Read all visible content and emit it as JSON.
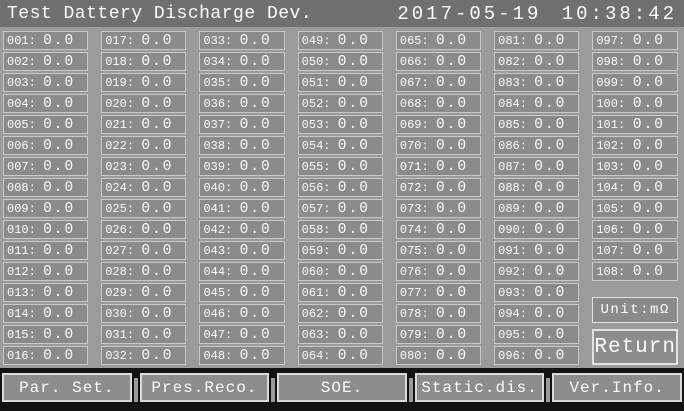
{
  "title_bar": {
    "title": "Test Dattery Discharge Dev.",
    "datetime": "2017-05-19 10:38:42"
  },
  "grid": {
    "unit_label": "Unit:mΩ",
    "return_label": "Return",
    "cells": [
      {
        "id": "001",
        "value": "0.0"
      },
      {
        "id": "002",
        "value": "0.0"
      },
      {
        "id": "003",
        "value": "0.0"
      },
      {
        "id": "004",
        "value": "0.0"
      },
      {
        "id": "005",
        "value": "0.0"
      },
      {
        "id": "006",
        "value": "0.0"
      },
      {
        "id": "007",
        "value": "0.0"
      },
      {
        "id": "008",
        "value": "0.0"
      },
      {
        "id": "009",
        "value": "0.0"
      },
      {
        "id": "010",
        "value": "0.0"
      },
      {
        "id": "011",
        "value": "0.0"
      },
      {
        "id": "012",
        "value": "0.0"
      },
      {
        "id": "013",
        "value": "0.0"
      },
      {
        "id": "014",
        "value": "0.0"
      },
      {
        "id": "015",
        "value": "0.0"
      },
      {
        "id": "016",
        "value": "0.0"
      },
      {
        "id": "017",
        "value": "0.0"
      },
      {
        "id": "018",
        "value": "0.0"
      },
      {
        "id": "019",
        "value": "0.0"
      },
      {
        "id": "020",
        "value": "0.0"
      },
      {
        "id": "021",
        "value": "0.0"
      },
      {
        "id": "022",
        "value": "0.0"
      },
      {
        "id": "023",
        "value": "0.0"
      },
      {
        "id": "024",
        "value": "0.0"
      },
      {
        "id": "025",
        "value": "0.0"
      },
      {
        "id": "026",
        "value": "0.0"
      },
      {
        "id": "027",
        "value": "0.0"
      },
      {
        "id": "028",
        "value": "0.0"
      },
      {
        "id": "029",
        "value": "0.0"
      },
      {
        "id": "030",
        "value": "0.0"
      },
      {
        "id": "031",
        "value": "0.0"
      },
      {
        "id": "032",
        "value": "0.0"
      },
      {
        "id": "033",
        "value": "0.0"
      },
      {
        "id": "034",
        "value": "0.0"
      },
      {
        "id": "035",
        "value": "0.0"
      },
      {
        "id": "036",
        "value": "0.0"
      },
      {
        "id": "037",
        "value": "0.0"
      },
      {
        "id": "038",
        "value": "0.0"
      },
      {
        "id": "039",
        "value": "0.0"
      },
      {
        "id": "040",
        "value": "0.0"
      },
      {
        "id": "041",
        "value": "0.0"
      },
      {
        "id": "042",
        "value": "0.0"
      },
      {
        "id": "043",
        "value": "0.0"
      },
      {
        "id": "044",
        "value": "0.0"
      },
      {
        "id": "045",
        "value": "0.0"
      },
      {
        "id": "046",
        "value": "0.0"
      },
      {
        "id": "047",
        "value": "0.0"
      },
      {
        "id": "048",
        "value": "0.0"
      },
      {
        "id": "049",
        "value": "0.0"
      },
      {
        "id": "050",
        "value": "0.0"
      },
      {
        "id": "051",
        "value": "0.0"
      },
      {
        "id": "052",
        "value": "0.0"
      },
      {
        "id": "053",
        "value": "0.0"
      },
      {
        "id": "054",
        "value": "0.0"
      },
      {
        "id": "055",
        "value": "0.0"
      },
      {
        "id": "056",
        "value": "0.0"
      },
      {
        "id": "057",
        "value": "0.0"
      },
      {
        "id": "058",
        "value": "0.0"
      },
      {
        "id": "059",
        "value": "0.0"
      },
      {
        "id": "060",
        "value": "0.0"
      },
      {
        "id": "061",
        "value": "0.0"
      },
      {
        "id": "062",
        "value": "0.0"
      },
      {
        "id": "063",
        "value": "0.0"
      },
      {
        "id": "064",
        "value": "0.0"
      },
      {
        "id": "065",
        "value": "0.0"
      },
      {
        "id": "066",
        "value": "0.0"
      },
      {
        "id": "067",
        "value": "0.0"
      },
      {
        "id": "068",
        "value": "0.0"
      },
      {
        "id": "069",
        "value": "0.0"
      },
      {
        "id": "070",
        "value": "0.0"
      },
      {
        "id": "071",
        "value": "0.0"
      },
      {
        "id": "072",
        "value": "0.0"
      },
      {
        "id": "073",
        "value": "0.0"
      },
      {
        "id": "074",
        "value": "0.0"
      },
      {
        "id": "075",
        "value": "0.0"
      },
      {
        "id": "076",
        "value": "0.0"
      },
      {
        "id": "077",
        "value": "0.0"
      },
      {
        "id": "078",
        "value": "0.0"
      },
      {
        "id": "079",
        "value": "0.0"
      },
      {
        "id": "080",
        "value": "0.0"
      },
      {
        "id": "081",
        "value": "0.0"
      },
      {
        "id": "082",
        "value": "0.0"
      },
      {
        "id": "083",
        "value": "0.0"
      },
      {
        "id": "084",
        "value": "0.0"
      },
      {
        "id": "085",
        "value": "0.0"
      },
      {
        "id": "086",
        "value": "0.0"
      },
      {
        "id": "087",
        "value": "0.0"
      },
      {
        "id": "088",
        "value": "0.0"
      },
      {
        "id": "089",
        "value": "0.0"
      },
      {
        "id": "090",
        "value": "0.0"
      },
      {
        "id": "091",
        "value": "0.0"
      },
      {
        "id": "092",
        "value": "0.0"
      },
      {
        "id": "093",
        "value": "0.0"
      },
      {
        "id": "094",
        "value": "0.0"
      },
      {
        "id": "095",
        "value": "0.0"
      },
      {
        "id": "096",
        "value": "0.0"
      },
      {
        "id": "097",
        "value": "0.0"
      },
      {
        "id": "098",
        "value": "0.0"
      },
      {
        "id": "099",
        "value": "0.0"
      },
      {
        "id": "100",
        "value": "0.0"
      },
      {
        "id": "101",
        "value": "0.0"
      },
      {
        "id": "102",
        "value": "0.0"
      },
      {
        "id": "103",
        "value": "0.0"
      },
      {
        "id": "104",
        "value": "0.0"
      },
      {
        "id": "105",
        "value": "0.0"
      },
      {
        "id": "106",
        "value": "0.0"
      },
      {
        "id": "107",
        "value": "0.0"
      },
      {
        "id": "108",
        "value": "0.0"
      }
    ]
  },
  "bottom_bar": {
    "buttons": [
      "Par. Set.",
      "Pres.Reco.",
      "SOE.",
      "Static.dis.",
      "Ver.Info."
    ]
  },
  "colors": {
    "titlebar_bg": "#707070",
    "body_bg": "#9b9b9b",
    "cell_bg": "#8b8b8b",
    "cell_border": "#c8c8c8",
    "bottom_bar_bg": "#121212",
    "button_border": "#dadada",
    "text": "#fbfbfb"
  }
}
